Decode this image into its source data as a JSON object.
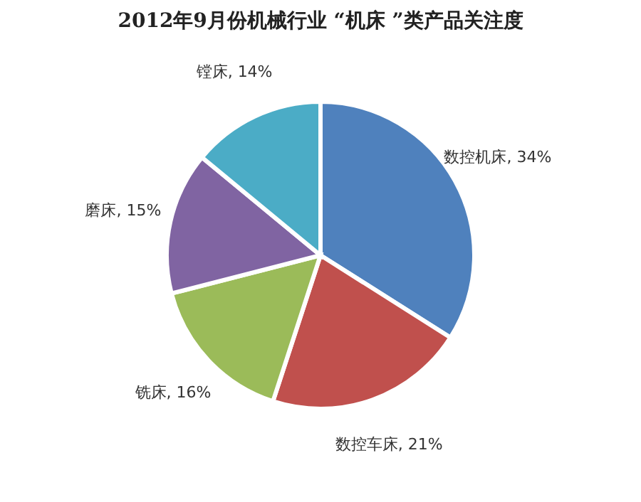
{
  "chart_data": {
    "type": "pie",
    "title": "2012年9月份机械行业 “机床 ”类产品关注度",
    "categories": [
      "数控机床",
      "数控车床",
      "铣床",
      "磨床",
      "镗床"
    ],
    "values": [
      34,
      21,
      16,
      15,
      14
    ],
    "value_labels": [
      "34%",
      "21%",
      "16%",
      "15%",
      "14%"
    ],
    "colors": [
      "#4f81bd",
      "#c0504d",
      "#9bbb59",
      "#8064a2",
      "#4bacc6"
    ],
    "legend": false
  }
}
